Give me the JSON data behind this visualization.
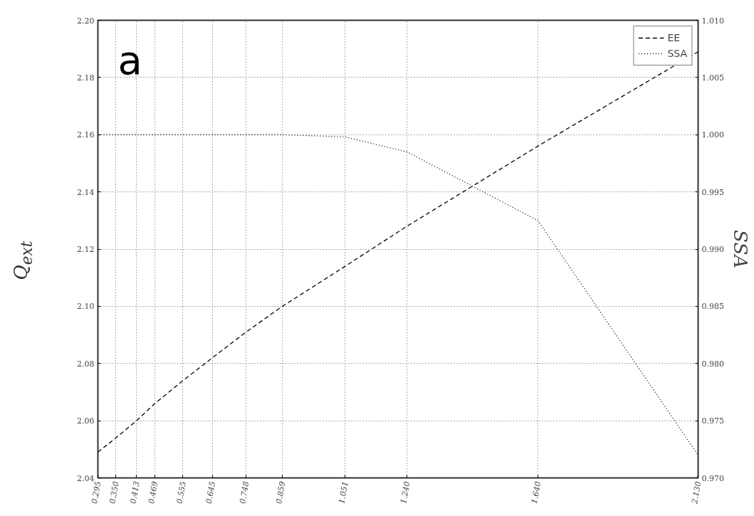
{
  "chart_data": {
    "type": "line",
    "ylabel": "Q$_{ext}$",
    "y2label": "SSA",
    "annotations": [
      "a"
    ],
    "x": [
      0.295,
      0.35,
      0.413,
      0.469,
      0.555,
      0.645,
      0.748,
      0.859,
      1.051,
      1.24,
      1.64,
      2.13
    ],
    "series": [
      {
        "name": "EE",
        "color": "#000000",
        "line_style": "dashed",
        "values": [
          2.049,
          2.054,
          2.06,
          2.066,
          2.074,
          2.082,
          2.091,
          2.1,
          2.114,
          2.128,
          2.156,
          2.189
        ]
      },
      {
        "name": "SSA",
        "color": "#000000",
        "line_style": "dotted",
        "axis": "y2",
        "values": [
          1.0,
          1.0,
          1.0,
          1.0,
          1.0,
          1.0,
          1.0,
          1.0,
          0.9998,
          0.9985,
          0.9925,
          0.972
        ]
      }
    ],
    "xlim": [
      0.295,
      2.13
    ],
    "xticks": [
      0.295,
      {
        "value": 0.35,
        "label": "0.350"
      },
      0.413,
      0.469,
      0.555,
      0.645,
      0.748,
      0.859,
      1.051,
      {
        "value": 1.24,
        "label": "1.240"
      },
      {
        "value": 1.64,
        "label": "1.640"
      },
      {
        "value": 2.13,
        "label": "2.130"
      }
    ],
    "ylim": [
      2.04,
      2.2
    ],
    "yticks": [
      2.04,
      2.06,
      2.08,
      {
        "value": 2.1,
        "label": "2.10"
      },
      2.12,
      2.14,
      2.16,
      2.18,
      {
        "value": 2.2,
        "label": "2.20"
      }
    ],
    "y2lim": [
      0.97,
      1.01
    ],
    "y2ticks": [
      {
        "value": 0.97,
        "label": "0.970"
      },
      0.975,
      {
        "value": 0.98,
        "label": "0.980"
      },
      0.985,
      {
        "value": 0.99,
        "label": "0.990"
      },
      0.995,
      {
        "value": 1,
        "label": "1.000"
      },
      1.005,
      {
        "value": 1.01,
        "label": "1.010"
      }
    ],
    "grid": true,
    "legend": "top right",
    "marker": "none"
  }
}
